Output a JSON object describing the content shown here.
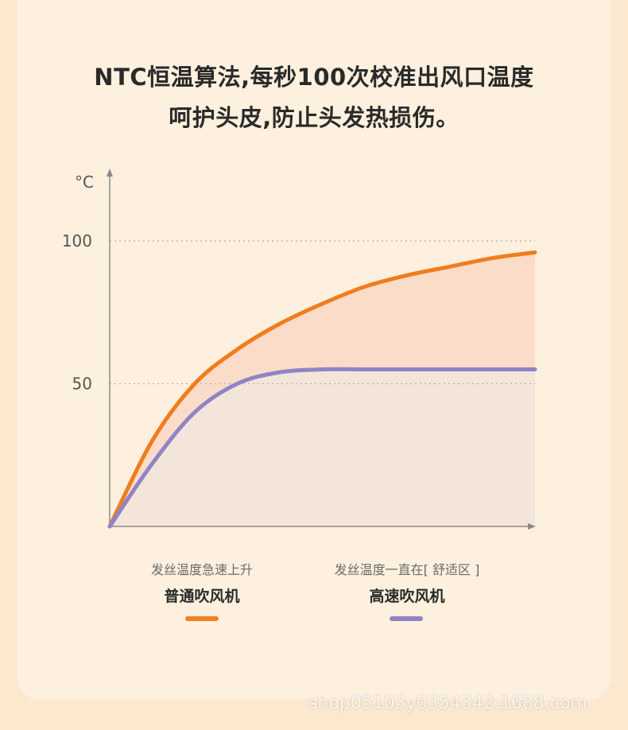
{
  "headline": {
    "line1": "NTC恒温算法,每秒100次校准出风口温度",
    "line2": "呵护头皮,防止头发热损伤。"
  },
  "chart_data": {
    "type": "line",
    "ylabel": "°C",
    "xlabel": "",
    "yticks": [
      100,
      50
    ],
    "ylim": [
      0,
      120
    ],
    "xlim": [
      0,
      1
    ],
    "grid": "dotted horizontal at 50 and 100",
    "series": [
      {
        "name": "普通吹风机",
        "caption": "发丝温度急速上升",
        "color": "#f07d1e",
        "x": [
          0,
          0.1,
          0.2,
          0.3,
          0.4,
          0.5,
          0.6,
          0.7,
          0.8,
          0.9,
          1.0
        ],
        "y": [
          0,
          30,
          50,
          62,
          71,
          78,
          84,
          88,
          91,
          94,
          96
        ]
      },
      {
        "name": "高速吹风机",
        "caption": "发丝温度一直在[ 舒适区 ]",
        "color": "#8f84c6",
        "x": [
          0,
          0.1,
          0.2,
          0.3,
          0.4,
          0.5,
          0.6,
          0.7,
          0.8,
          0.9,
          1.0
        ],
        "y": [
          0,
          22,
          40,
          50,
          54,
          55,
          55,
          55,
          55,
          55,
          55
        ]
      }
    ]
  },
  "legend": [
    {
      "caption": "发丝温度急速上升",
      "name": "普通吹风机",
      "color": "#f0821f"
    },
    {
      "caption": "发丝温度一直在[ 舒适区 ]",
      "name": "高速吹风机",
      "color": "#8f84c6"
    }
  ],
  "watermark": "shop05103y0354342.1688.com"
}
